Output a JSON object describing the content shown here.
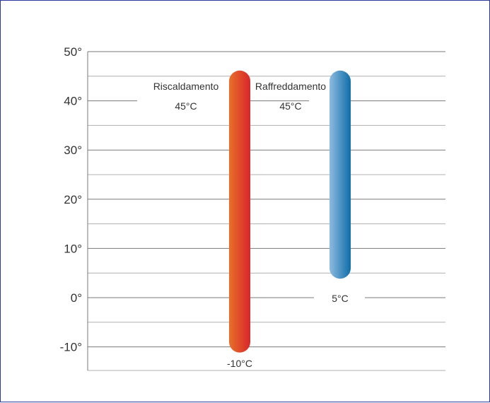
{
  "chart_data": {
    "type": "range-bar",
    "y_tick_labels": [
      "50°",
      "40°",
      "30°",
      "20°",
      "10°",
      "0°",
      "-10°"
    ],
    "y_ticks": [
      50,
      40,
      30,
      20,
      10,
      0,
      -10
    ],
    "ylim": [
      -15,
      50
    ],
    "grid": true,
    "series": [
      {
        "name": "Riscaldamento",
        "min": -10,
        "max": 45,
        "min_label": "-10°C",
        "max_label": "45°C",
        "colors": [
          "#e8702a",
          "#d8262a"
        ]
      },
      {
        "name": "Raffreddamento",
        "min": 5,
        "max": 45,
        "min_label": "5°C",
        "max_label": "45°C",
        "colors": [
          "#8fbbe0",
          "#0e6ea8"
        ]
      }
    ]
  }
}
